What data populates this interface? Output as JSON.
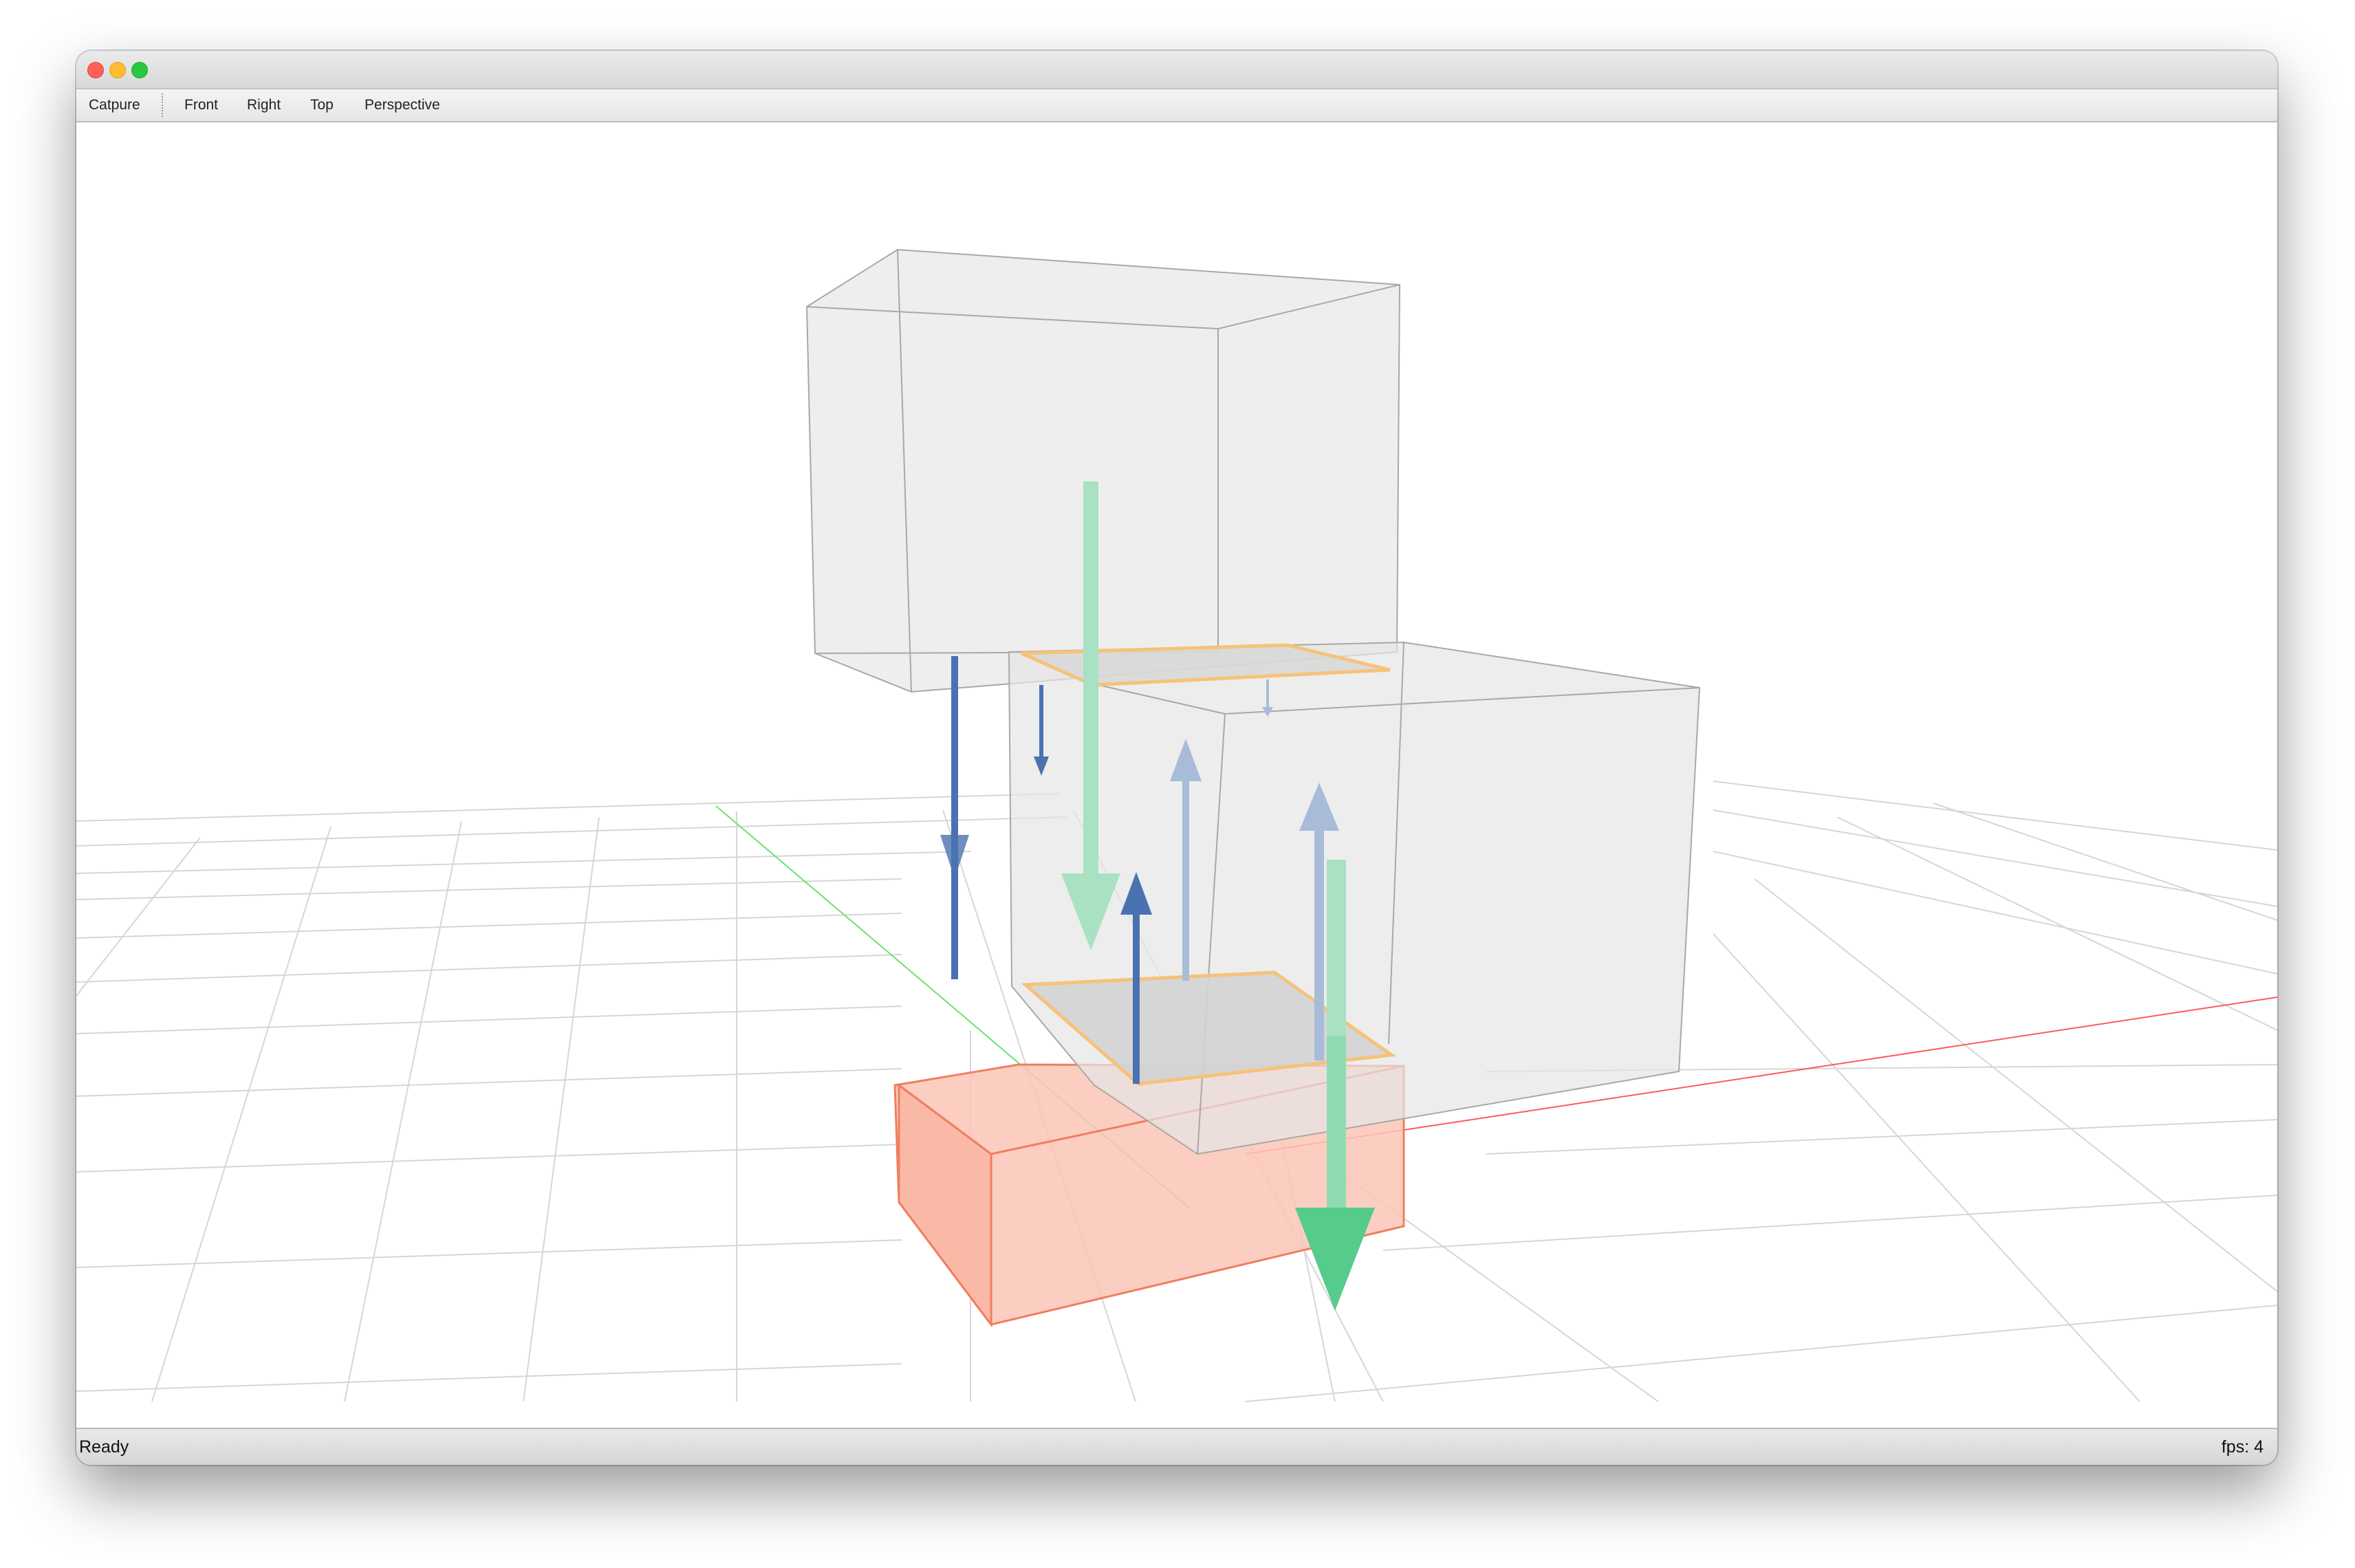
{
  "menu": {
    "capture": "Catpure",
    "front": "Front",
    "right": "Right",
    "top": "Top",
    "perspective": "Perspective"
  },
  "status": {
    "text": "Ready",
    "fps": "fps: 4"
  },
  "scene": {
    "objects": [
      "grid-floor",
      "x-axis",
      "y-axis",
      "upper-box",
      "middle-box",
      "base-box",
      "contact-plane-top",
      "contact-plane-bottom",
      "force-arrows"
    ]
  },
  "colors": {
    "x_axis": "#ff5a5a",
    "y_axis": "#6ee06e",
    "grid": "#d6d6d6",
    "box_edge": "#a8a8a8",
    "box_fill": "#e0e0e0",
    "base_fill": "#fbb8a6",
    "base_edge": "#f07e60",
    "contact_outline": "#f6c27a",
    "normal_force": "#4fcf8a",
    "reaction_force": "#4a72b0",
    "reaction_force_light": "#a8bcd8"
  }
}
